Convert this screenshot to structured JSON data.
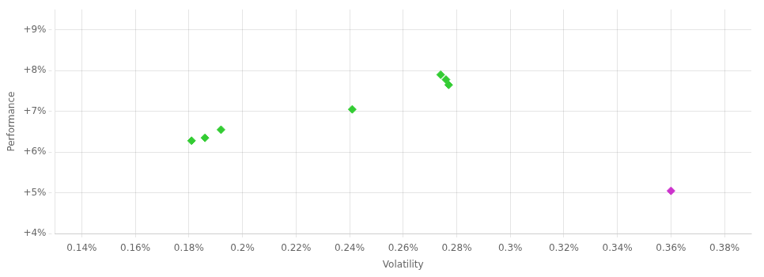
{
  "chart_data": {
    "type": "scatter",
    "xlabel": "Volatility",
    "ylabel": "Performance",
    "xlim": [
      0.13,
      0.39
    ],
    "ylim": [
      0.04,
      0.095
    ],
    "xticks": [
      {
        "value": 0.14,
        "label": "0.14%"
      },
      {
        "value": 0.16,
        "label": "0.16%"
      },
      {
        "value": 0.18,
        "label": "0.18%"
      },
      {
        "value": 0.2,
        "label": "0.2%"
      },
      {
        "value": 0.22,
        "label": "0.22%"
      },
      {
        "value": 0.24,
        "label": "0.24%"
      },
      {
        "value": 0.26,
        "label": "0.26%"
      },
      {
        "value": 0.28,
        "label": "0.28%"
      },
      {
        "value": 0.3,
        "label": "0.3%"
      },
      {
        "value": 0.32,
        "label": "0.32%"
      },
      {
        "value": 0.34,
        "label": "0.34%"
      },
      {
        "value": 0.36,
        "label": "0.36%"
      },
      {
        "value": 0.38,
        "label": "0.38%"
      }
    ],
    "yticks": [
      {
        "value": 0.04,
        "label": "+4%"
      },
      {
        "value": 0.05,
        "label": "+5%"
      },
      {
        "value": 0.06,
        "label": "+6%"
      },
      {
        "value": 0.07,
        "label": "+7%"
      },
      {
        "value": 0.08,
        "label": "+8%"
      },
      {
        "value": 0.09,
        "label": "+9%"
      }
    ],
    "grid": true,
    "series": [
      {
        "color": "#33cc33",
        "marker": "diamond",
        "x": [
          0.181,
          0.186,
          0.192,
          0.241,
          0.274,
          0.276,
          0.277
        ],
        "values": [
          0.0628,
          0.0635,
          0.0655,
          0.0705,
          0.079,
          0.0778,
          0.0765
        ]
      },
      {
        "color": "#cc33cc",
        "marker": "diamond",
        "x": [
          0.36
        ],
        "values": [
          0.0505
        ]
      }
    ]
  }
}
